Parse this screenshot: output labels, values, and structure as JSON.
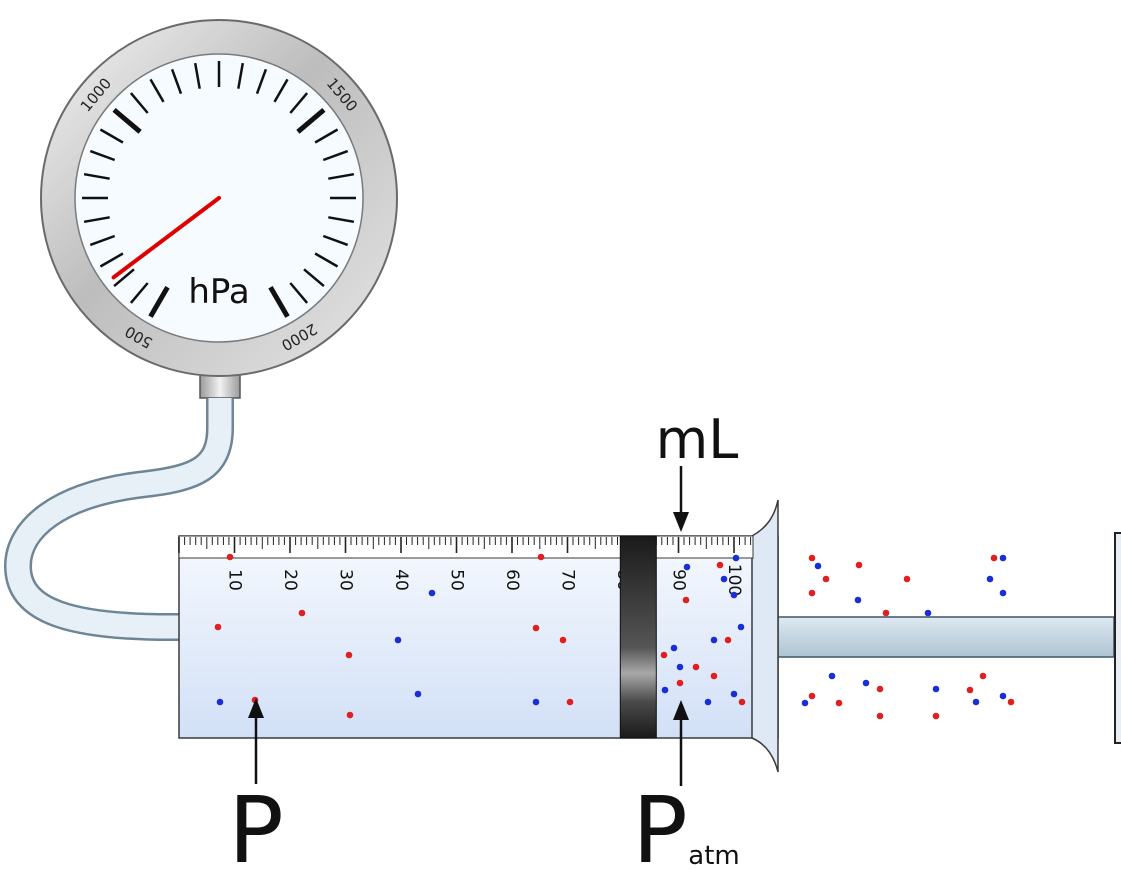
{
  "gauge": {
    "unit": "hPa",
    "scale_labels": [
      "500",
      "1000",
      "1500",
      "2000"
    ],
    "scale_min": 500,
    "scale_max": 2000,
    "needle_reading": 615,
    "needle_color": "#e00000"
  },
  "syringe": {
    "unit_label": "mL",
    "scale_labels": [
      "10",
      "20",
      "30",
      "40",
      "50",
      "60",
      "70",
      "80",
      "90",
      "100"
    ],
    "scale_min": 0,
    "scale_max": 100,
    "plunger_position": 86,
    "volume_indicator": 90
  },
  "labels": {
    "pressure": "P",
    "atm_pressure_base": "P",
    "atm_pressure_sub": "atm"
  },
  "particles": {
    "colors": {
      "red": "#e02020",
      "blue": "#1a2ed6"
    }
  }
}
